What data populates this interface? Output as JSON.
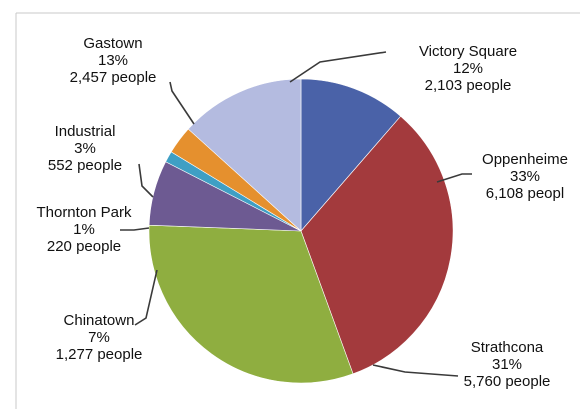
{
  "chart_data": {
    "type": "pie",
    "slices": [
      {
        "name": "Victory Square",
        "percent_label": "12%",
        "people_label": "2,103 people",
        "value": 2103,
        "color": "#4a62a8"
      },
      {
        "name": "Oppenheimer",
        "display_name": "Oppenheime",
        "percent_label": "33%",
        "people_label": "6,108 peopl",
        "value": 6108,
        "color": "#a33a3d"
      },
      {
        "name": "Strathcona",
        "percent_label": "31%",
        "people_label": "5,760 people",
        "value": 5760,
        "color": "#8fae40"
      },
      {
        "name": "Chinatown",
        "percent_label": "7%",
        "people_label": "1,277 people",
        "value": 1277,
        "color": "#6d5a92"
      },
      {
        "name": "Thornton Park",
        "percent_label": "1%",
        "people_label": "220 people",
        "value": 220,
        "color": "#3f9fc4"
      },
      {
        "name": "Industrial",
        "percent_label": "3%",
        "people_label": "552 people",
        "value": 552,
        "color": "#e5902e"
      },
      {
        "name": "Gastown",
        "percent_label": "13%",
        "people_label": "2,457 people",
        "value": 2457,
        "color": "#b4bbe0"
      }
    ],
    "start_angle_deg": 0,
    "direction": "clockwise",
    "legend": "none"
  },
  "colors": {
    "frame_border": "#c8c8c8",
    "leader_line": "#3a3a3a",
    "label_text": "#111111"
  }
}
